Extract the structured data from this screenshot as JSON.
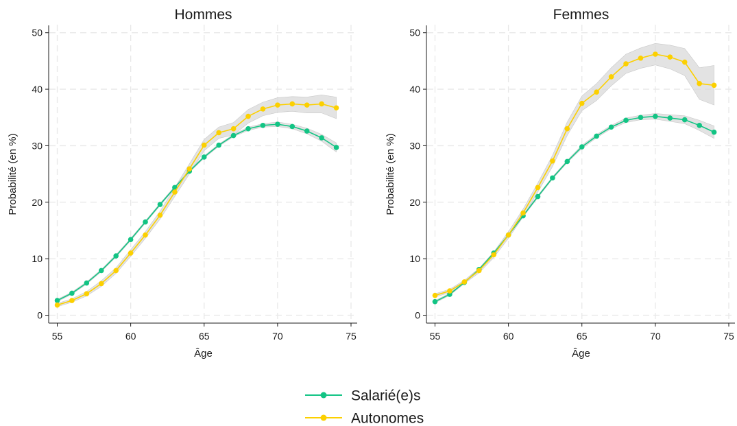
{
  "chart_data": [
    {
      "type": "line",
      "title": "Hommes",
      "xlabel": "Âge",
      "ylabel": "Probabilité (en %)",
      "xlim": [
        55,
        75
      ],
      "ylim": [
        0,
        50
      ],
      "xticks": [
        "55",
        "60",
        "65",
        "70",
        "75"
      ],
      "yticks": [
        "0",
        "10",
        "20",
        "30",
        "40",
        "50"
      ],
      "grid": true,
      "x": [
        55,
        56,
        57,
        58,
        59,
        60,
        61,
        62,
        63,
        64,
        65,
        66,
        67,
        68,
        69,
        70,
        71,
        72,
        73,
        74
      ],
      "series": [
        {
          "name": "Salarié(e)s",
          "color": "#12c484",
          "values": [
            2.6,
            3.9,
            5.7,
            7.9,
            10.5,
            13.4,
            16.5,
            19.6,
            22.6,
            25.5,
            28.0,
            30.1,
            31.8,
            33.0,
            33.6,
            33.8,
            33.4,
            32.6,
            31.4,
            29.7
          ],
          "ci_low": [
            2.4,
            3.7,
            5.5,
            7.7,
            10.3,
            13.2,
            16.3,
            19.4,
            22.4,
            25.3,
            27.8,
            29.9,
            31.6,
            32.7,
            33.3,
            33.4,
            33.0,
            32.1,
            30.8,
            28.9
          ],
          "ci_high": [
            2.8,
            4.1,
            5.9,
            8.1,
            10.7,
            13.6,
            16.7,
            19.8,
            22.8,
            25.7,
            28.2,
            30.3,
            32.0,
            33.3,
            33.9,
            34.2,
            33.8,
            33.1,
            32.0,
            30.5
          ]
        },
        {
          "name": "Autonomes",
          "color": "#fcd000",
          "values": [
            1.8,
            2.6,
            3.8,
            5.6,
            7.9,
            11.0,
            14.2,
            17.7,
            21.8,
            25.9,
            30.1,
            32.3,
            33.0,
            35.2,
            36.5,
            37.2,
            37.4,
            37.2,
            37.4,
            36.7
          ],
          "ci_low": [
            1.5,
            2.3,
            3.4,
            5.1,
            7.4,
            10.4,
            13.6,
            17.0,
            21.0,
            25.0,
            29.1,
            31.3,
            31.9,
            34.0,
            35.3,
            35.9,
            36.1,
            35.8,
            35.8,
            34.8
          ],
          "ci_high": [
            2.1,
            2.9,
            4.2,
            6.1,
            8.4,
            11.6,
            14.8,
            18.4,
            22.6,
            26.8,
            31.1,
            33.3,
            34.1,
            36.4,
            37.7,
            38.5,
            38.7,
            38.6,
            39.0,
            38.6
          ]
        }
      ]
    },
    {
      "type": "line",
      "title": "Femmes",
      "xlabel": "Âge",
      "ylabel": "Probabilité (en %)",
      "xlim": [
        55,
        75
      ],
      "ylim": [
        0,
        50
      ],
      "xticks": [
        "55",
        "60",
        "65",
        "70",
        "75"
      ],
      "yticks": [
        "0",
        "10",
        "20",
        "30",
        "40",
        "50"
      ],
      "grid": true,
      "x": [
        55,
        56,
        57,
        58,
        59,
        60,
        61,
        62,
        63,
        64,
        65,
        66,
        67,
        68,
        69,
        70,
        71,
        72,
        73,
        74
      ],
      "series": [
        {
          "name": "Salarié(e)s",
          "color": "#12c484",
          "values": [
            2.4,
            3.7,
            5.8,
            8.1,
            11.0,
            14.2,
            17.6,
            21.0,
            24.3,
            27.2,
            29.8,
            31.7,
            33.3,
            34.5,
            35.0,
            35.2,
            34.9,
            34.6,
            33.6,
            32.4
          ],
          "ci_low": [
            2.2,
            3.5,
            5.6,
            7.9,
            10.8,
            14.0,
            17.4,
            20.8,
            24.1,
            27.0,
            29.5,
            31.4,
            33.0,
            34.1,
            34.6,
            34.7,
            34.3,
            33.9,
            32.7,
            31.3
          ],
          "ci_high": [
            2.6,
            3.9,
            6.0,
            8.3,
            11.2,
            14.4,
            17.8,
            21.2,
            24.5,
            27.4,
            30.1,
            32.0,
            33.6,
            34.9,
            35.4,
            35.7,
            35.5,
            35.3,
            34.5,
            33.5
          ]
        },
        {
          "name": "Autonomes",
          "color": "#fcd000",
          "values": [
            3.5,
            4.3,
            5.9,
            7.9,
            10.7,
            14.2,
            18.1,
            22.6,
            27.3,
            33.0,
            37.5,
            39.5,
            42.2,
            44.5,
            45.5,
            46.2,
            45.7,
            44.8,
            41.0,
            40.7
          ],
          "ci_low": [
            3.2,
            4.0,
            5.6,
            7.5,
            10.2,
            13.6,
            17.4,
            21.8,
            26.3,
            31.8,
            36.2,
            38.0,
            40.6,
            42.8,
            43.7,
            44.3,
            43.6,
            42.4,
            38.2,
            37.2
          ],
          "ci_high": [
            3.8,
            4.6,
            6.2,
            8.3,
            11.2,
            14.8,
            18.8,
            23.4,
            28.3,
            34.2,
            38.8,
            41.0,
            43.8,
            46.2,
            47.3,
            48.1,
            47.8,
            47.2,
            43.8,
            44.2
          ]
        }
      ]
    }
  ],
  "legend": {
    "placement": "bottom-center",
    "items": [
      {
        "label": "Salarié(e)s",
        "color": "#12c484"
      },
      {
        "label": "Autonomes",
        "color": "#fcd000"
      }
    ]
  },
  "colors": {
    "ci_band": "#d9d9d9",
    "grid": "#e8e8e8",
    "axis": "#1a1a1a"
  }
}
